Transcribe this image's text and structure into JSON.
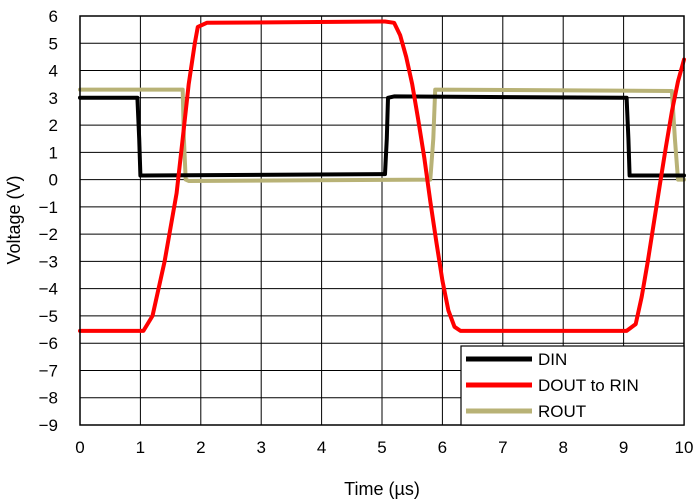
{
  "chart_data": {
    "type": "line",
    "title": "",
    "xlabel": "Time (µs)",
    "ylabel": "Voltage (V)",
    "xlim": [
      0,
      10
    ],
    "ylim": [
      -9,
      6
    ],
    "xticks": [
      "0",
      "1",
      "2",
      "3",
      "4",
      "5",
      "6",
      "7",
      "8",
      "9",
      "10"
    ],
    "yticks": [
      "6",
      "5",
      "4",
      "3",
      "2",
      "1",
      "0",
      "-1",
      "-2",
      "-3",
      "-4",
      "-5",
      "-6",
      "-7",
      "-8",
      "-9"
    ],
    "grid": true,
    "legend_position": "bottom-right",
    "series": [
      {
        "name": "DIN",
        "color": "#000000",
        "x": [
          0,
          0.95,
          0.98,
          1.0,
          1.05,
          5.05,
          5.08,
          5.1,
          5.2,
          9.05,
          9.08,
          9.1,
          9.15,
          10.0
        ],
        "y": [
          3.0,
          3.0,
          1.5,
          0.15,
          0.15,
          0.2,
          1.5,
          3.0,
          3.05,
          3.0,
          1.5,
          0.15,
          0.15,
          0.15
        ]
      },
      {
        "name": "DOUT to RIN",
        "color": "#ff0000",
        "x": [
          0,
          1.05,
          1.2,
          1.4,
          1.6,
          1.7,
          1.8,
          1.9,
          1.95,
          2.1,
          5.05,
          5.2,
          5.3,
          5.4,
          5.5,
          5.6,
          5.7,
          5.8,
          5.9,
          6.0,
          6.1,
          6.2,
          6.3,
          9.05,
          9.2,
          9.3,
          9.4,
          9.5,
          9.6,
          9.7,
          9.8,
          9.9,
          10.0
        ],
        "y": [
          -5.55,
          -5.55,
          -5.0,
          -3.0,
          -0.5,
          1.5,
          3.5,
          5.0,
          5.6,
          5.75,
          5.8,
          5.75,
          5.3,
          4.5,
          3.5,
          2.2,
          0.8,
          -0.8,
          -2.3,
          -3.7,
          -4.8,
          -5.4,
          -5.55,
          -5.55,
          -5.3,
          -4.3,
          -3.0,
          -1.6,
          -0.2,
          1.2,
          2.5,
          3.6,
          4.4
        ]
      },
      {
        "name": "ROUT",
        "color": "#b8b276",
        "x": [
          0,
          1.7,
          1.72,
          1.75,
          1.8,
          5.8,
          5.85,
          5.88,
          5.9,
          9.8,
          9.85,
          9.9,
          10.0
        ],
        "y": [
          3.3,
          3.3,
          1.5,
          0.0,
          -0.05,
          0.0,
          1.5,
          3.3,
          3.3,
          3.25,
          1.5,
          0.0,
          0.0
        ]
      }
    ]
  }
}
